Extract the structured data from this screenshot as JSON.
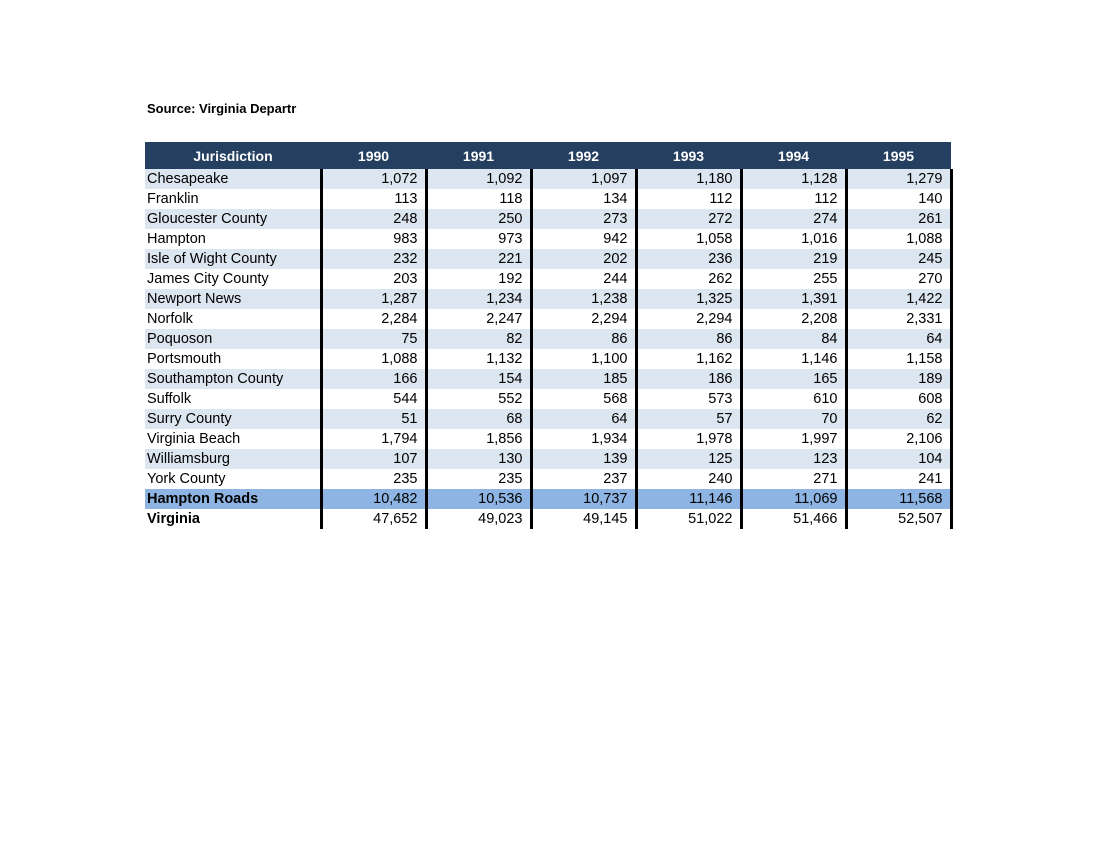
{
  "source_label": "Source: Virginia Departr",
  "table": {
    "headers": [
      "Jurisdiction",
      "1990",
      "1991",
      "1992",
      "1993",
      "1994",
      "1995"
    ],
    "rows": [
      {
        "name": "Chesapeake",
        "values": [
          "1,072",
          "1,092",
          "1,097",
          "1,180",
          "1,128",
          "1,279"
        ]
      },
      {
        "name": "Franklin",
        "values": [
          "113",
          "118",
          "134",
          "112",
          "112",
          "140"
        ]
      },
      {
        "name": "Gloucester County",
        "values": [
          "248",
          "250",
          "273",
          "272",
          "274",
          "261"
        ]
      },
      {
        "name": "Hampton",
        "values": [
          "983",
          "973",
          "942",
          "1,058",
          "1,016",
          "1,088"
        ]
      },
      {
        "name": "Isle of Wight County",
        "values": [
          "232",
          "221",
          "202",
          "236",
          "219",
          "245"
        ]
      },
      {
        "name": "James City County",
        "values": [
          "203",
          "192",
          "244",
          "262",
          "255",
          "270"
        ]
      },
      {
        "name": "Newport News",
        "values": [
          "1,287",
          "1,234",
          "1,238",
          "1,325",
          "1,391",
          "1,422"
        ]
      },
      {
        "name": "Norfolk",
        "values": [
          "2,284",
          "2,247",
          "2,294",
          "2,294",
          "2,208",
          "2,331"
        ]
      },
      {
        "name": "Poquoson",
        "values": [
          "75",
          "82",
          "86",
          "86",
          "84",
          "64"
        ]
      },
      {
        "name": "Portsmouth",
        "values": [
          "1,088",
          "1,132",
          "1,100",
          "1,162",
          "1,146",
          "1,158"
        ]
      },
      {
        "name": "Southampton County",
        "values": [
          "166",
          "154",
          "185",
          "186",
          "165",
          "189"
        ]
      },
      {
        "name": "Suffolk",
        "values": [
          "544",
          "552",
          "568",
          "573",
          "610",
          "608"
        ]
      },
      {
        "name": "Surry County",
        "values": [
          "51",
          "68",
          "64",
          "57",
          "70",
          "62"
        ]
      },
      {
        "name": "Virginia Beach",
        "values": [
          "1,794",
          "1,856",
          "1,934",
          "1,978",
          "1,997",
          "2,106"
        ]
      },
      {
        "name": "Williamsburg",
        "values": [
          "107",
          "130",
          "139",
          "125",
          "123",
          "104"
        ]
      },
      {
        "name": "York County",
        "values": [
          "235",
          "235",
          "237",
          "240",
          "271",
          "241"
        ]
      }
    ],
    "total_row": {
      "name": "Hampton Roads",
      "values": [
        "10,482",
        "10,536",
        "10,737",
        "11,146",
        "11,069",
        "11,568"
      ]
    },
    "state_row": {
      "name": "Virginia",
      "values": [
        "47,652",
        "49,023",
        "49,145",
        "51,022",
        "51,466",
        "52,507"
      ]
    }
  },
  "colors": {
    "header_bg": "#243f60",
    "stripe_bg": "#dce6f1",
    "total_bg": "#8db4e2"
  }
}
